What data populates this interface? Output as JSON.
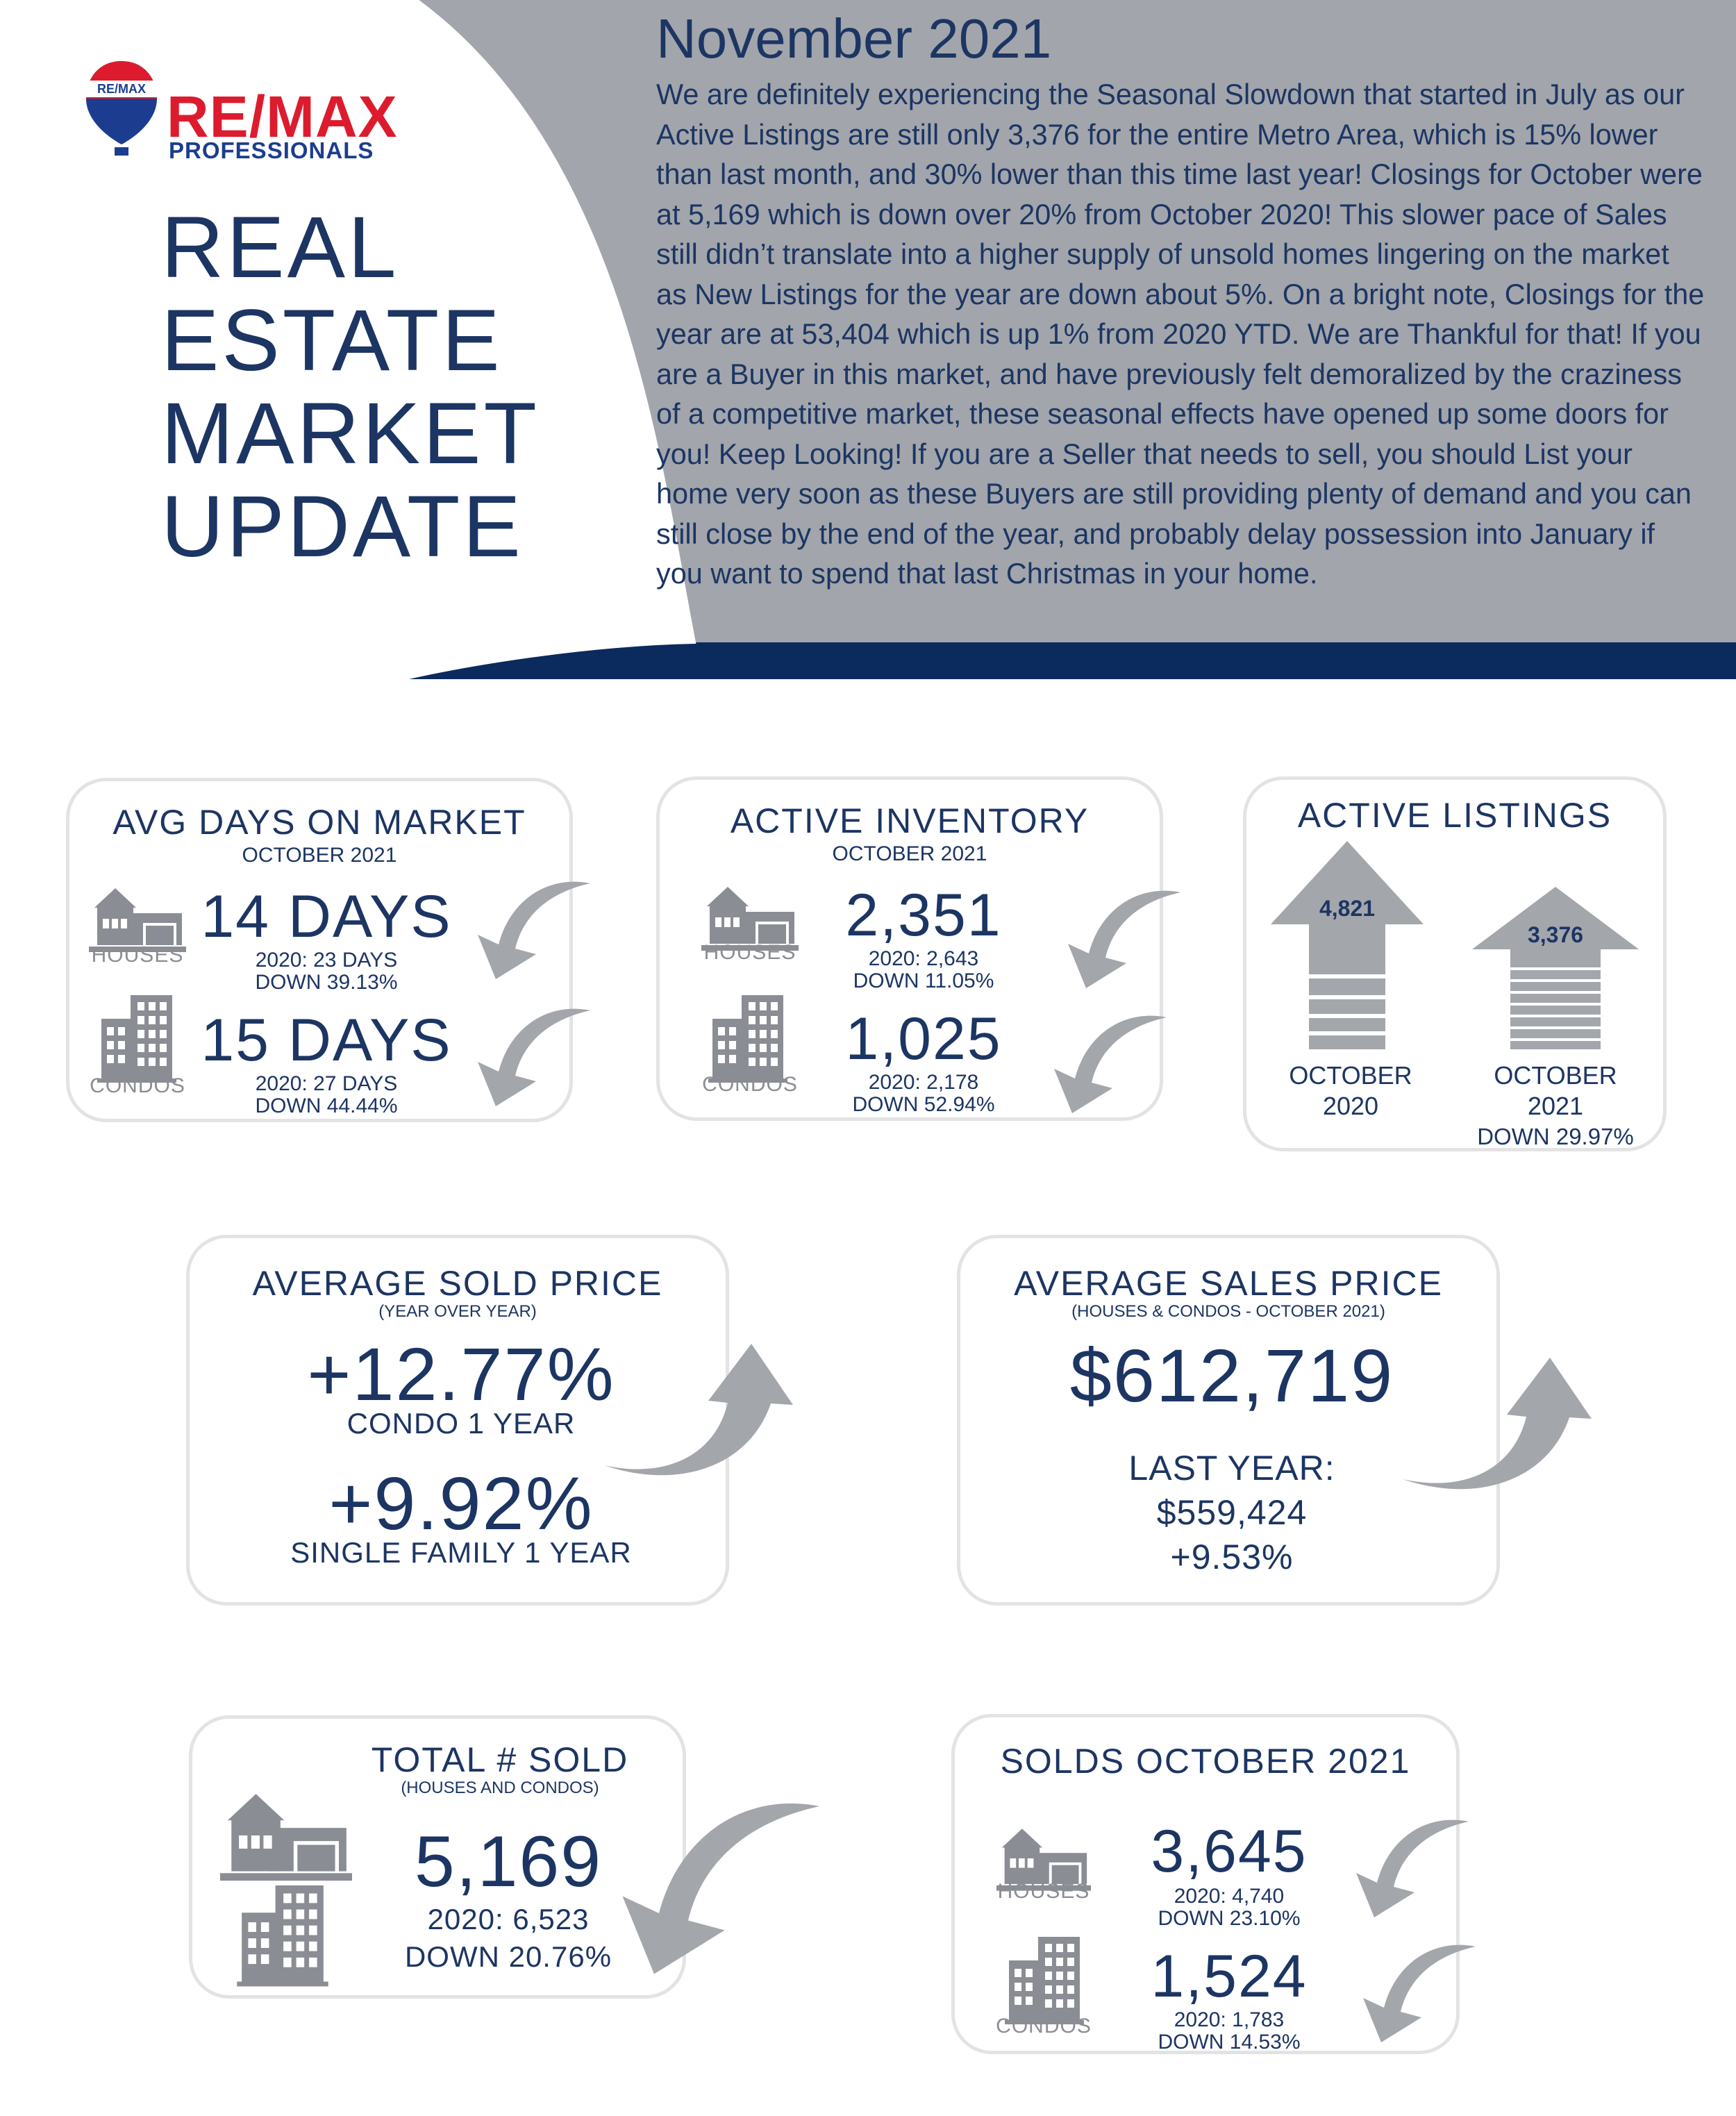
{
  "brand": {
    "name": "RE/MAX",
    "subtitle": "PROFESSIONALS",
    "balloon_text": "RE/MAX"
  },
  "header": {
    "title_lines": [
      "REAL",
      "ESTATE",
      "MARKET",
      "UPDATE"
    ],
    "month": "November 2021",
    "intro": "We are definitely experiencing the Seasonal Slowdown that started in July as our Active Listings are still only 3,376 for the entire Metro Area, which is 15% lower than last month, and 30% lower than this time last year!  Closings for October were at 5,169 which is down over 20% from October 2020! This slower pace of Sales still didn’t translate into a higher supply of unsold homes lingering on the market as New Listings for the year are down about 5%. On a bright note, Closings for the year are at 53,404 which is up 1% from 2020 YTD. We are Thankful for that! If you are a Buyer in this market, and have previously felt demoralized by the craziness of a competitive market, these seasonal effects have opened up some doors for you! Keep Looking! If you are a Seller that needs to sell, you should List your home very soon as these Buyers are still providing plenty of demand and you can still close by the end of the year, and probably delay possession into January if you want to spend that last Christmas in your home."
  },
  "days_on_market": {
    "title": "AVG DAYS ON MARKET",
    "subtitle": "OCTOBER 2021",
    "houses": {
      "label": "HOUSES",
      "value": "14 DAYS",
      "prior": "2020: 23 DAYS",
      "change": "DOWN 39.13%"
    },
    "condos": {
      "label": "CONDOS",
      "value": "15 DAYS",
      "prior": "2020: 27 DAYS",
      "change": "DOWN 44.44%"
    }
  },
  "active_inventory": {
    "title": "ACTIVE INVENTORY",
    "subtitle": "OCTOBER 2021",
    "houses": {
      "label": "HOUSES",
      "value": "2,351",
      "prior": "2020: 2,643",
      "change": "DOWN 11.05%"
    },
    "condos": {
      "label": "CONDOS",
      "value": "1,025",
      "prior": "2020: 2,178",
      "change": "DOWN 52.94%"
    }
  },
  "active_listings": {
    "title": "ACTIVE LISTINGS",
    "bar_2020": {
      "value": "4,821",
      "label_line1": "OCTOBER",
      "label_line2": "2020"
    },
    "bar_2021": {
      "value": "3,376",
      "label_line1": "OCTOBER",
      "label_line2": "2021",
      "change": "DOWN 29.97%"
    }
  },
  "avg_sold_price": {
    "title": "AVERAGE SOLD PRICE",
    "subtitle": "(YEAR OVER YEAR)",
    "condo_value": "+12.77%",
    "condo_label": "CONDO 1 YEAR",
    "sf_value": "+9.92%",
    "sf_label": "SINGLE FAMILY 1 YEAR"
  },
  "avg_sales_price": {
    "title": "AVERAGE SALES PRICE",
    "subtitle": "(HOUSES & CONDOS - OCTOBER 2021)",
    "value": "$612,719",
    "last_year_label": "LAST YEAR:",
    "last_year_value": "$559,424",
    "change": "+9.53%"
  },
  "total_sold": {
    "title": "TOTAL # SOLD",
    "subtitle": "(HOUSES AND CONDOS)",
    "value": "5,169",
    "prior": "2020: 6,523",
    "change": "DOWN 20.76%"
  },
  "solds_october": {
    "title": "SOLDS OCTOBER 2021",
    "houses": {
      "label": "HOUSES",
      "value": "3,645",
      "prior": "2020: 4,740",
      "change": "DOWN 23.10%"
    },
    "condos": {
      "label": "CONDOS",
      "value": "1,524",
      "prior": "2020: 1,783",
      "change": "DOWN 14.53%"
    }
  },
  "colors": {
    "navy": "#1c3563",
    "dark_band": "#0b2a5e",
    "gray_panel": "#a2a5ab",
    "icon_gray": "#8a8d93",
    "remax_red": "#dc1c2e",
    "remax_blue": "#1c3d8f"
  }
}
